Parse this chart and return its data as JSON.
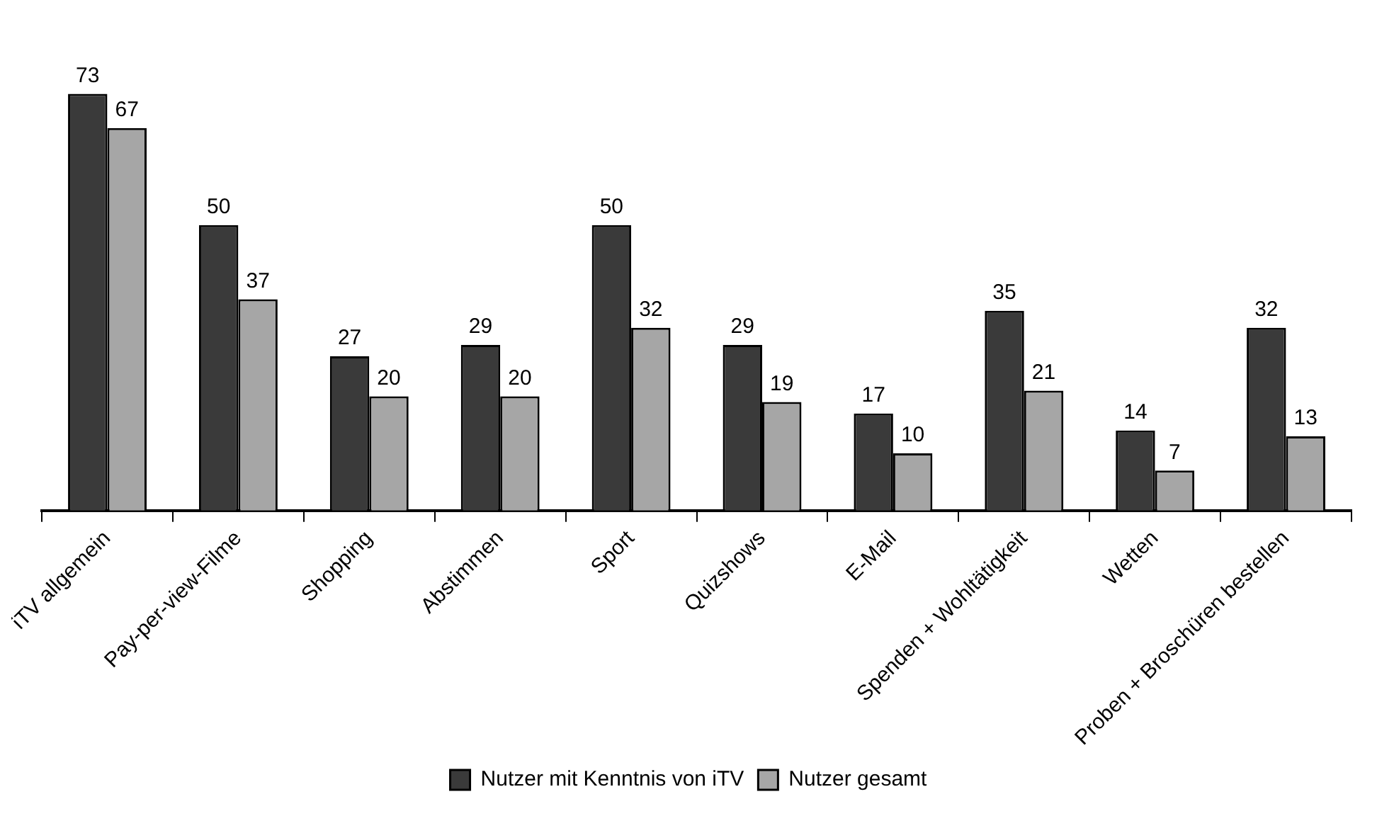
{
  "chart_data": {
    "type": "bar",
    "categories": [
      "iTV allgemein",
      "Pay-per-view-Filme",
      "Shopping",
      "Abstimmen",
      "Sport",
      "Quizshows",
      "E-Mail",
      "Spenden + Wohltätigkeit",
      "Wetten",
      "Proben + Broschüren bestellen"
    ],
    "series": [
      {
        "name": "Nutzer mit Kenntnis von iTV",
        "color": "#3a3a3a",
        "values": [
          73,
          50,
          27,
          29,
          50,
          29,
          17,
          35,
          14,
          32
        ]
      },
      {
        "name": "Nutzer gesamt",
        "color": "#a6a6a6",
        "values": [
          67,
          37,
          20,
          20,
          32,
          19,
          10,
          21,
          7,
          13
        ]
      }
    ],
    "data_labels": true,
    "legend": "bottom",
    "grid": false,
    "tick_labels": "x"
  }
}
